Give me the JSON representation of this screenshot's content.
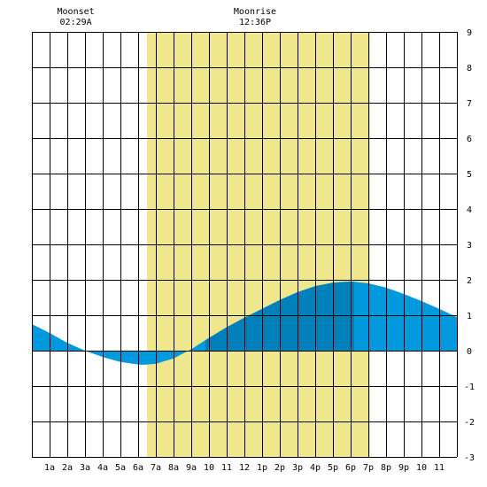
{
  "chart_data": {
    "type": "area",
    "title": "",
    "xlabel": "",
    "ylabel": "",
    "x_range": [
      0,
      24
    ],
    "ylim": [
      -3,
      9
    ],
    "y_ticks": [
      "-3",
      "-2",
      "-1",
      "0",
      "1",
      "2",
      "3",
      "4",
      "5",
      "6",
      "7",
      "8",
      "9"
    ],
    "x_tick_labels": [
      "1a",
      "2a",
      "3a",
      "4a",
      "5a",
      "6a",
      "7a",
      "8a",
      "9a",
      "10",
      "11",
      "12",
      "1p",
      "2p",
      "3p",
      "4p",
      "5p",
      "6p",
      "7p",
      "8p",
      "9p",
      "10",
      "11"
    ],
    "grid": true,
    "daylight": {
      "start": 6.5,
      "end": 19.1
    },
    "series": [
      {
        "x": [
          0,
          1,
          2,
          3,
          4,
          5,
          6,
          6.3,
          7,
          8,
          9,
          10,
          11,
          12,
          13,
          14,
          15,
          16,
          17,
          18,
          18.1,
          19,
          20,
          21,
          22,
          23,
          24
        ],
        "values": [
          0.75,
          0.5,
          0.22,
          0.0,
          -0.18,
          -0.32,
          -0.39,
          -0.4,
          -0.37,
          -0.22,
          0.04,
          0.36,
          0.66,
          0.93,
          1.18,
          1.43,
          1.65,
          1.82,
          1.92,
          1.95,
          1.95,
          1.9,
          1.78,
          1.6,
          1.4,
          1.18,
          0.95
        ]
      }
    ],
    "shade_split": {
      "start": 9.8,
      "end": 18.2
    },
    "annotations": [
      {
        "label": "Moonset",
        "time": "02:29A",
        "x": 2.48
      },
      {
        "label": "Moonrise",
        "time": "12:36P",
        "x": 12.6
      }
    ],
    "colors": {
      "daylight": "#f0e68c",
      "tide_fill": "#0099dd",
      "tide_dark": "#0080bb",
      "grid": "#000000"
    }
  }
}
